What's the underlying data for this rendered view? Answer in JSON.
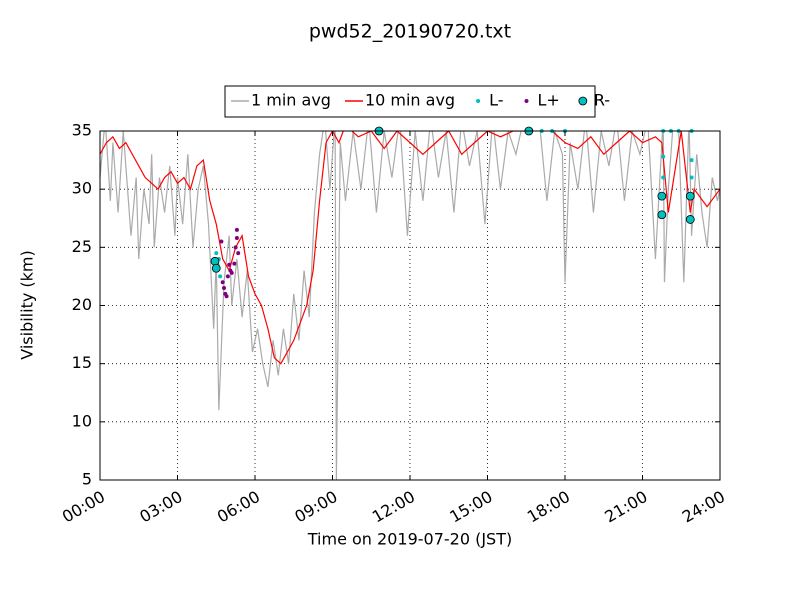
{
  "chart_data": {
    "type": "line",
    "title": "pwd52_20190720.txt",
    "xlabel": "Time on 2019-07-20 (JST)",
    "ylabel": "Visibility (km)",
    "xlim": [
      0,
      24
    ],
    "ylim": [
      5,
      35
    ],
    "xticks": [
      {
        "value": 0,
        "label": "00:00"
      },
      {
        "value": 3,
        "label": "03:00"
      },
      {
        "value": 6,
        "label": "06:00"
      },
      {
        "value": 9,
        "label": "09:00"
      },
      {
        "value": 12,
        "label": "12:00"
      },
      {
        "value": 15,
        "label": "15:00"
      },
      {
        "value": 18,
        "label": "18:00"
      },
      {
        "value": 21,
        "label": "21:00"
      },
      {
        "value": 24,
        "label": "24:00"
      }
    ],
    "yticks": [
      5,
      10,
      15,
      20,
      25,
      30,
      35
    ],
    "grid": true,
    "legend": "upper center",
    "series": [
      {
        "name": "1 min avg",
        "kind": "line",
        "color": "#aaaaaa",
        "x": [
          0,
          0.2,
          0.4,
          0.5,
          0.7,
          0.9,
          1.0,
          1.2,
          1.4,
          1.5,
          1.7,
          1.9,
          2.0,
          2.1,
          2.3,
          2.5,
          2.7,
          2.9,
          3.0,
          3.2,
          3.4,
          3.6,
          3.8,
          4.0,
          4.2,
          4.4,
          4.5,
          4.6,
          4.8,
          5.0,
          5.1,
          5.3,
          5.5,
          5.7,
          5.9,
          6.1,
          6.3,
          6.5,
          6.7,
          6.9,
          7.1,
          7.3,
          7.5,
          7.7,
          7.9,
          8.1,
          8.3,
          8.5,
          8.7,
          8.9,
          9.1,
          9.15,
          9.3,
          9.5,
          9.8,
          10.1,
          10.4,
          10.7,
          11.0,
          11.3,
          11.6,
          11.9,
          12.2,
          12.5,
          12.8,
          13.1,
          13.4,
          13.7,
          14.0,
          14.3,
          14.6,
          14.9,
          15.2,
          15.5,
          15.8,
          16.1,
          16.4,
          16.7,
          17.0,
          17.3,
          17.6,
          17.9,
          18.0,
          18.2,
          18.5,
          18.8,
          19.1,
          19.4,
          19.7,
          20.0,
          20.3,
          20.6,
          20.9,
          21.2,
          21.5,
          21.8,
          21.85,
          22.0,
          22.2,
          22.4,
          22.6,
          22.8,
          22.9,
          23.1,
          23.3,
          23.5,
          23.7,
          23.9,
          24
        ],
        "values": [
          31,
          36,
          29,
          34,
          28,
          35,
          32,
          26,
          31,
          24,
          30,
          27,
          33,
          25,
          31,
          28,
          32,
          26,
          31,
          27,
          33,
          25,
          30,
          32,
          27,
          18,
          24,
          11,
          22,
          26,
          20,
          24,
          19,
          23,
          16,
          18,
          15,
          13,
          17,
          14,
          18,
          15,
          21,
          17,
          23,
          19,
          28,
          33,
          36,
          30,
          36,
          5,
          34,
          29,
          35,
          30,
          36,
          28,
          35,
          31,
          36,
          26,
          35,
          29,
          36,
          31,
          35,
          28,
          36,
          32,
          35,
          27,
          36,
          30,
          35,
          33,
          36,
          35,
          36,
          29,
          35,
          33,
          22,
          34,
          30,
          36,
          28,
          35,
          32,
          36,
          29,
          35,
          33,
          36,
          24,
          36,
          22,
          30,
          36,
          35,
          22,
          36,
          26,
          33,
          28,
          25,
          31,
          29,
          30
        ]
      },
      {
        "name": "10 min avg",
        "kind": "line",
        "color": "#ff0000",
        "x": [
          0,
          0.25,
          0.5,
          0.75,
          1,
          1.25,
          1.5,
          1.75,
          2,
          2.25,
          2.5,
          2.75,
          3,
          3.25,
          3.5,
          3.75,
          4,
          4.25,
          4.5,
          4.75,
          5,
          5.25,
          5.5,
          5.75,
          6,
          6.25,
          6.5,
          6.75,
          7,
          7.25,
          7.5,
          7.75,
          8,
          8.25,
          8.5,
          8.75,
          9,
          9.25,
          9.5,
          10,
          10.5,
          11,
          11.5,
          12,
          12.5,
          13,
          13.5,
          14,
          14.5,
          15,
          15.5,
          16,
          16.5,
          17,
          17.5,
          18,
          18.5,
          19,
          19.5,
          20,
          20.5,
          21,
          21.5,
          21.75,
          22,
          22.5,
          22.85,
          23,
          23.5,
          24
        ],
        "values": [
          33,
          34,
          34.5,
          33.5,
          34,
          33,
          32,
          31,
          30.5,
          30,
          31,
          31.5,
          30.5,
          31,
          30,
          32,
          32.5,
          29,
          27,
          24,
          23,
          25,
          26,
          22.5,
          21,
          20,
          18,
          15.5,
          15,
          16,
          17,
          18.5,
          20,
          23,
          29,
          34,
          35,
          34,
          35.5,
          34.5,
          35,
          33.5,
          35,
          34,
          33,
          34,
          35,
          33,
          34,
          35,
          34.5,
          35,
          35,
          35.5,
          35,
          34,
          33.5,
          34.5,
          33,
          34,
          35,
          34,
          34.5,
          34,
          28,
          35,
          28,
          30,
          28.5,
          30
        ]
      },
      {
        "name": "L-",
        "kind": "dot",
        "color": "#00bfbf",
        "x": [
          4.5,
          4.55,
          4.6,
          4.65,
          17.1,
          17.5,
          18.0,
          21.8,
          21.8,
          21.8,
          22.1,
          22.4,
          22.9,
          22.9,
          22.9
        ],
        "values": [
          24.5,
          23.5,
          24,
          22.5,
          35,
          35,
          35,
          35,
          32.8,
          31,
          35,
          35,
          35,
          32.5,
          31
        ]
      },
      {
        "name": "L+",
        "kind": "dot",
        "color": "#800080",
        "x": [
          4.7,
          4.75,
          4.8,
          4.85,
          4.9,
          4.95,
          5.0,
          5.05,
          5.1,
          5.2,
          5.25,
          5.3,
          5.3,
          5.35
        ],
        "values": [
          25.5,
          22,
          21.5,
          21,
          20.8,
          22.5,
          23.5,
          23,
          22.8,
          23.6,
          25,
          26.5,
          25.8,
          24.5
        ]
      },
      {
        "name": "R-",
        "kind": "circle",
        "color": "#00bfbf",
        "x": [
          4.45,
          4.5,
          10.8,
          16.6,
          21.75,
          21.75,
          22.85,
          22.85
        ],
        "values": [
          23.8,
          23.2,
          35,
          35,
          29.4,
          27.8,
          29.4,
          27.4
        ]
      }
    ]
  }
}
